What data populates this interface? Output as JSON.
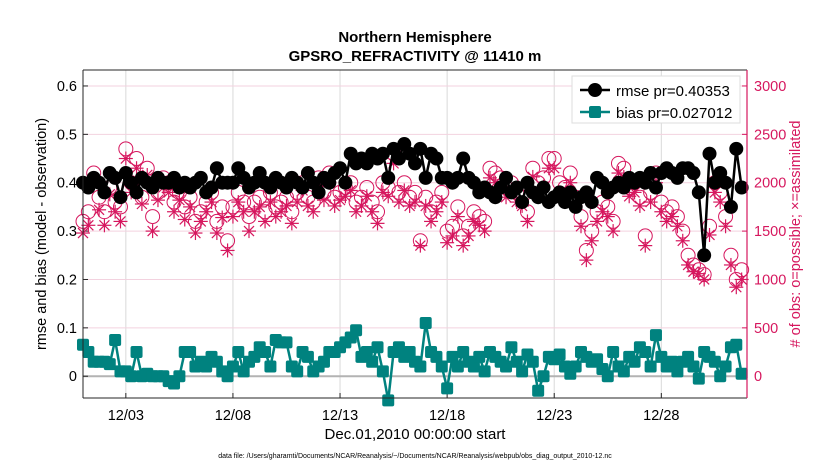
{
  "chart_data": {
    "type": "line",
    "title": [
      "Northern Hemisphere",
      "GPSRO_REFRACTIVITY @ 11410 m"
    ],
    "xlabel": "Dec.01,2010 00:00:00 start",
    "ylabel": "rmse and bias (model - observation)",
    "ylabel_right": "# of obs: o=possible; ×=assimilated",
    "footnote": "data file: /Users/gharamti/Documents/NCAR/Reanalysis/~/Documents/NCAR/Reanalysis/webpub/obs_diag_output_2010-12.nc",
    "xlim": [
      1,
      32
    ],
    "ylim": [
      -0.045,
      0.633
    ],
    "ylim_right": [
      -225,
      3165
    ],
    "x_ticks": [
      3,
      8,
      13,
      18,
      23,
      28
    ],
    "x_tick_labels": [
      "12/03",
      "12/08",
      "12/13",
      "12/18",
      "12/23",
      "12/28"
    ],
    "y_ticks": [
      0,
      0.1,
      0.2,
      0.3,
      0.4,
      0.5,
      0.6
    ],
    "y_tick_labels": [
      "0",
      "0.1",
      "0.2",
      "0.3",
      "0.4",
      "0.5",
      "0.6"
    ],
    "y_right_ticks": [
      0,
      500,
      1000,
      1500,
      2000,
      2500,
      3000
    ],
    "y_right_tick_labels": [
      "0",
      "500",
      "1000",
      "1500",
      "2000",
      "2500",
      "3000"
    ],
    "grid": true,
    "legend_position": "top-right",
    "x_start_day": 1,
    "x_step_days": 0.25,
    "series": [
      {
        "name": "rmse pr=0.40353",
        "axis": "left",
        "color": "#000000",
        "marker": "circle",
        "values": [
          0.4,
          0.39,
          0.41,
          0.4,
          0.38,
          0.42,
          0.41,
          0.37,
          0.42,
          0.4,
          0.38,
          0.41,
          0.4,
          0.39,
          0.41,
          0.4,
          0.4,
          0.41,
          0.39,
          0.4,
          0.39,
          0.4,
          0.41,
          0.38,
          0.39,
          0.43,
          0.4,
          0.4,
          0.4,
          0.43,
          0.41,
          0.39,
          0.4,
          0.42,
          0.4,
          0.39,
          0.41,
          0.4,
          0.39,
          0.41,
          0.4,
          0.39,
          0.42,
          0.4,
          0.38,
          0.41,
          0.4,
          0.42,
          0.43,
          0.4,
          0.46,
          0.44,
          0.45,
          0.44,
          0.46,
          0.45,
          0.46,
          0.41,
          0.47,
          0.45,
          0.48,
          0.46,
          0.44,
          0.47,
          0.41,
          0.46,
          0.45,
          0.41,
          0.41,
          0.4,
          0.41,
          0.45,
          0.41,
          0.4,
          0.38,
          0.39,
          0.38,
          0.37,
          0.39,
          0.41,
          0.38,
          0.39,
          0.36,
          0.4,
          0.38,
          0.37,
          0.39,
          0.36,
          0.37,
          0.38,
          0.36,
          0.38,
          0.35,
          0.37,
          0.38,
          0.36,
          0.41,
          0.4,
          0.38,
          0.39,
          0.4,
          0.39,
          0.41,
          0.4,
          0.41,
          0.4,
          0.42,
          0.39,
          0.42,
          0.43,
          0.42,
          0.41,
          0.43,
          0.43,
          0.42,
          0.38,
          0.25,
          0.46,
          0.4,
          0.42,
          0.4,
          0.35,
          0.47,
          0.39
        ]
      },
      {
        "name": "bias pr=0.027012",
        "axis": "left",
        "color": "#00827f",
        "marker": "square",
        "values": [
          0.065,
          0.05,
          0.03,
          0.03,
          0.03,
          0.025,
          0.075,
          0.01,
          0.01,
          0.0,
          0.05,
          0.0,
          0.005,
          0.0,
          0.0,
          0.0,
          -0.01,
          -0.015,
          0.0,
          0.05,
          0.05,
          0.02,
          0.03,
          0.02,
          0.04,
          0.03,
          0.01,
          0.0,
          0.02,
          0.05,
          0.01,
          0.03,
          0.04,
          0.06,
          0.05,
          0.02,
          0.075,
          0.07,
          0.07,
          0.02,
          0.01,
          0.05,
          0.04,
          0.01,
          0.02,
          0.03,
          0.05,
          0.05,
          0.06,
          0.07,
          0.08,
          0.095,
          0.04,
          0.05,
          0.03,
          0.06,
          0.01,
          -0.05,
          0.05,
          0.06,
          0.04,
          0.05,
          0.03,
          0.02,
          0.11,
          0.05,
          0.04,
          0.02,
          -0.025,
          0.04,
          0.02,
          0.05,
          0.03,
          0.02,
          0.04,
          0.01,
          0.05,
          0.04,
          0.03,
          0.02,
          0.06,
          0.03,
          0.01,
          0.045,
          0.03,
          -0.03,
          0.0,
          0.04,
          0.035,
          0.045,
          0.02,
          0.005,
          0.02,
          0.05,
          0.04,
          0.03,
          0.035,
          0.015,
          0.0,
          0.05,
          0.02,
          0.01,
          0.04,
          0.03,
          0.06,
          0.05,
          0.02,
          0.085,
          0.04,
          0.02,
          0.03,
          0.01,
          0.03,
          0.04,
          0.02,
          -0.005,
          0.05,
          0.04,
          0.03,
          0.0,
          0.02,
          0.06,
          0.065,
          0.005
        ]
      },
      {
        "name": "possible",
        "axis": "right",
        "color": "#d6175e",
        "marker": "open-circle",
        "values": [
          1600,
          1700,
          2100,
          1850,
          1700,
          1950,
          1800,
          1750,
          2350,
          2000,
          2250,
          1850,
          2150,
          1650,
          1900,
          2050,
          2000,
          1800,
          1900,
          1750,
          1850,
          1600,
          1700,
          1800,
          1900,
          1600,
          1750,
          1400,
          1750,
          1900,
          1800,
          1650,
          1800,
          1850,
          1700,
          1900,
          1750,
          1800,
          1850,
          1700,
          1900,
          2000,
          1850,
          1800,
          2050,
          1900,
          2100,
          1850,
          1900,
          1950,
          2000,
          1800,
          1850,
          1950,
          1800,
          1700,
          2000,
          1950,
          2300,
          1900,
          2000,
          1850,
          1900,
          1400,
          1850,
          1700,
          1800,
          1900,
          1500,
          1550,
          1750,
          1450,
          1550,
          1700,
          1650,
          1600,
          2150,
          2100,
          2050,
          1950,
          2000,
          1900,
          1850,
          1700,
          2150,
          2000,
          2050,
          2250,
          2250,
          2000,
          1950,
          2100,
          1850,
          1650,
          1300,
          1500,
          1700,
          1800,
          1750,
          1600,
          2200,
          2150,
          1950,
          2000,
          1850,
          1450,
          1900,
          2100,
          1800,
          1700,
          1750,
          1650,
          1500,
          1250,
          1150,
          1100,
          1050,
          1550,
          2000,
          1900,
          1650,
          1250,
          1000,
          1100
        ]
      },
      {
        "name": "assimilated",
        "axis": "right",
        "color": "#d6175e",
        "marker": "asterisk",
        "values": [
          1480,
          1560,
          2020,
          1720,
          1560,
          1880,
          1700,
          1600,
          2250,
          1900,
          2150,
          1780,
          2080,
          1500,
          1820,
          1950,
          1900,
          1700,
          1820,
          1620,
          1750,
          1480,
          1600,
          1700,
          1800,
          1480,
          1640,
          1300,
          1650,
          1800,
          1700,
          1500,
          1700,
          1750,
          1600,
          1800,
          1650,
          1700,
          1760,
          1580,
          1800,
          1920,
          1760,
          1700,
          1960,
          1820,
          2000,
          1760,
          1820,
          1860,
          1920,
          1700,
          1760,
          1860,
          1700,
          1580,
          1900,
          1860,
          2200,
          1800,
          1920,
          1760,
          1800,
          1350,
          1760,
          1600,
          1700,
          1800,
          1380,
          1450,
          1650,
          1350,
          1450,
          1600,
          1560,
          1500,
          2050,
          2000,
          1960,
          1850,
          1920,
          1800,
          1760,
          1600,
          2060,
          1900,
          1960,
          2150,
          2150,
          1900,
          1860,
          2000,
          1760,
          1550,
          1200,
          1400,
          1600,
          1700,
          1650,
          1500,
          2100,
          2060,
          1860,
          1900,
          1760,
          1350,
          1800,
          2000,
          1700,
          1600,
          1650,
          1550,
          1400,
          1150,
          1080,
          1060,
          1000,
          1460,
          1900,
          1800,
          1550,
          1150,
          920,
          1000
        ]
      }
    ]
  }
}
